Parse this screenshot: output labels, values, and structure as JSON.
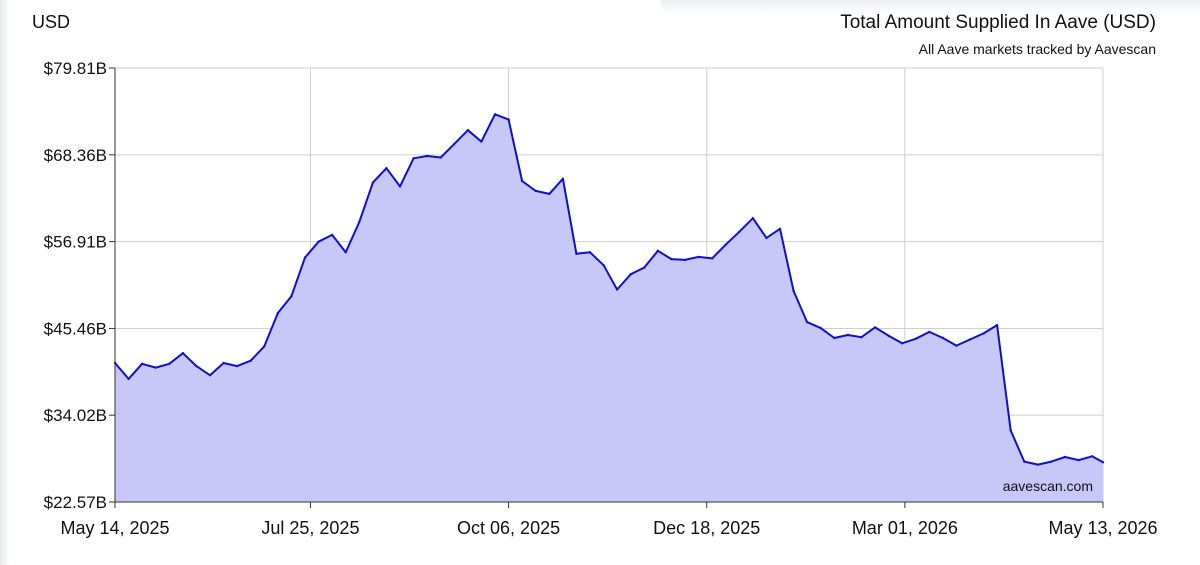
{
  "chart_data": {
    "type": "area",
    "unit_label": "USD",
    "title": "Total Amount Supplied In Aave (USD)",
    "subtitle": "All Aave markets tracked by Aavescan",
    "watermark": "aavescan.com",
    "xlabel": "",
    "ylabel": "",
    "ylim": [
      22.57,
      79.81
    ],
    "x_range": [
      "2025-05-14",
      "2026-05-13"
    ],
    "grid": true,
    "y_ticks": [
      {
        "value": 79.81,
        "label": "$79.81B"
      },
      {
        "value": 68.36,
        "label": "$68.36B"
      },
      {
        "value": 56.91,
        "label": "$56.91B"
      },
      {
        "value": 45.46,
        "label": "$45.46B"
      },
      {
        "value": 34.02,
        "label": "$34.02B"
      },
      {
        "value": 22.57,
        "label": "$22.57B"
      }
    ],
    "x_ticks": [
      {
        "date": "2025-05-14",
        "label": "May 14, 2025"
      },
      {
        "date": "2025-07-25",
        "label": "Jul 25, 2025"
      },
      {
        "date": "2025-10-06",
        "label": "Oct 06, 2025"
      },
      {
        "date": "2025-12-18",
        "label": "Dec 18, 2025"
      },
      {
        "date": "2026-03-01",
        "label": "Mar 01, 2026"
      },
      {
        "date": "2026-05-13",
        "label": "May 13, 2026"
      }
    ],
    "colors": {
      "line": "#1010cc",
      "fill": "#c8c8f8",
      "grid": "#cfcfcf",
      "axis": "#333333"
    },
    "series": [
      {
        "x": [
          "2025-05-14",
          "2025-05-19",
          "2025-05-24",
          "2025-05-29",
          "2025-06-03",
          "2025-06-08",
          "2025-06-13",
          "2025-06-18",
          "2025-06-23",
          "2025-06-28",
          "2025-07-03",
          "2025-07-08",
          "2025-07-13",
          "2025-07-18",
          "2025-07-23",
          "2025-07-28",
          "2025-08-02",
          "2025-08-07",
          "2025-08-12",
          "2025-08-17",
          "2025-08-22",
          "2025-08-27",
          "2025-09-01",
          "2025-09-06",
          "2025-09-11",
          "2025-09-16",
          "2025-09-21",
          "2025-09-26",
          "2025-10-01",
          "2025-10-06",
          "2025-10-11",
          "2025-10-16",
          "2025-10-21",
          "2025-10-26",
          "2025-10-31",
          "2025-11-05",
          "2025-11-10",
          "2025-11-15",
          "2025-11-20",
          "2025-11-25",
          "2025-11-30",
          "2025-12-05",
          "2025-12-10",
          "2025-12-15",
          "2025-12-20",
          "2025-12-25",
          "2025-12-30",
          "2026-01-04",
          "2026-01-09",
          "2026-01-14",
          "2026-01-19",
          "2026-01-24",
          "2026-01-29",
          "2026-02-03",
          "2026-02-08",
          "2026-02-13",
          "2026-02-18",
          "2026-02-23",
          "2026-02-28",
          "2026-03-05",
          "2026-03-10",
          "2026-03-15",
          "2026-03-20",
          "2026-03-25",
          "2026-03-30",
          "2026-04-04",
          "2026-04-09",
          "2026-04-14",
          "2026-04-19",
          "2026-04-24",
          "2026-04-29",
          "2026-05-04",
          "2026-05-09",
          "2026-05-13"
        ],
        "values": [
          40.9,
          38.8,
          40.8,
          40.3,
          40.8,
          42.2,
          40.5,
          39.3,
          40.9,
          40.5,
          41.2,
          43.1,
          47.5,
          49.7,
          54.8,
          56.9,
          57.8,
          55.5,
          59.5,
          64.7,
          66.6,
          64.2,
          67.9,
          68.2,
          68.0,
          69.8,
          71.6,
          70.1,
          73.7,
          73.0,
          64.9,
          63.6,
          63.2,
          65.2,
          55.3,
          55.5,
          53.8,
          50.6,
          52.6,
          53.5,
          55.7,
          54.6,
          54.5,
          54.9,
          54.7,
          56.5,
          58.2,
          60.0,
          57.4,
          58.6,
          50.4,
          46.3,
          45.5,
          44.2,
          44.6,
          44.3,
          45.6,
          44.5,
          43.5,
          44.1,
          45.0,
          44.2,
          43.2,
          44.0,
          44.8,
          45.9,
          32.0,
          27.9,
          27.5,
          27.9,
          28.5,
          28.1,
          28.6,
          27.8
        ]
      }
    ]
  }
}
